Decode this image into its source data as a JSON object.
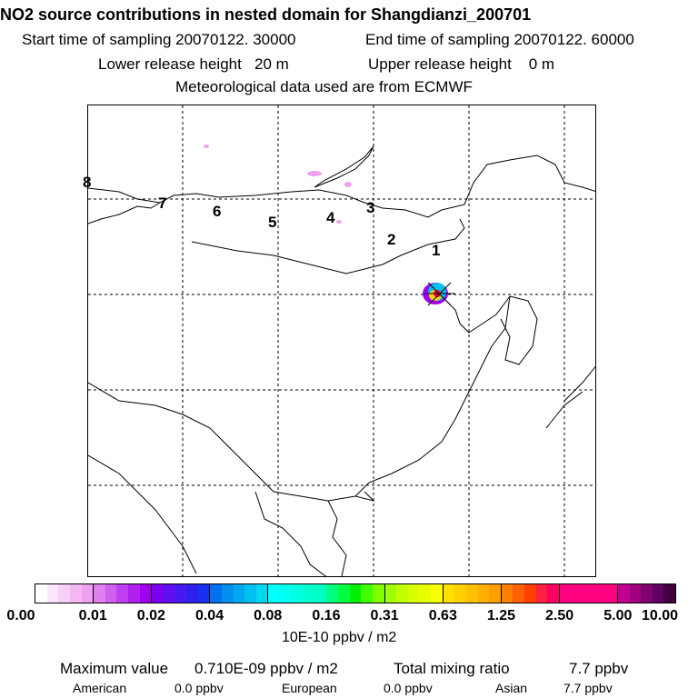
{
  "chart_data": {
    "type": "heatmap",
    "title": "NO2 source contributions in nested domain for Shangdianzi_200701",
    "subtitle_lines": {
      "start": "Start time of sampling 20070122. 30000",
      "end": "End time of sampling 20070122. 60000",
      "lower": "Lower release height   20 m",
      "upper": "Upper release height    0 m",
      "met": "Meteorological data used are from ECMWF"
    },
    "colorbar": {
      "ticks": [
        "0.00",
        "0.01",
        "0.02",
        "0.04",
        "0.08",
        "0.16",
        "0.31",
        "0.63",
        "1.25",
        "2.50",
        "5.00",
        "10.00"
      ],
      "unit": "10E-10 ppbv / m2",
      "colors": [
        [
          "#ffffff",
          "#fbe6fb",
          "#f7d0f7",
          "#f3b8f3",
          "#efa0ef"
        ],
        [
          "#e080f0",
          "#d060f0",
          "#c040f0",
          "#b020f0",
          "#a000f0"
        ],
        [
          "#7a00f0",
          "#6010f0",
          "#4818f0",
          "#3020f0",
          "#1830f0"
        ],
        [
          "#0070f0",
          "#0090f0",
          "#00a8f0",
          "#00c0f0",
          "#00d8f0"
        ],
        [
          "#00ffff",
          "#00fff0",
          "#00ffe0",
          "#00ffd0",
          "#00ffc0"
        ],
        [
          "#00ff80",
          "#00ff40",
          "#00f000",
          "#40ff00",
          "#80ff00"
        ],
        [
          "#a0ff00",
          "#c0ff00",
          "#d8ff00",
          "#e8ff00",
          "#f8ff00"
        ],
        [
          "#ffe000",
          "#ffd000",
          "#ffc000",
          "#ffb000",
          "#ffa000"
        ],
        [
          "#ff8000",
          "#ff6000",
          "#ff4000",
          "#ff2040",
          "#ff0060"
        ],
        [
          "#ff0080",
          "#ff0080",
          "#ff0080",
          "#ff0080",
          "#ff0080"
        ],
        [
          "#c00090",
          "#a00080",
          "#800070",
          "#600060",
          "#400040"
        ]
      ]
    },
    "trajectory_labels": [
      "1",
      "2",
      "3",
      "4",
      "5",
      "6",
      "7",
      "8"
    ],
    "lat_lines": 4,
    "lon_lines": 5
  },
  "footer": {
    "max_label": "Maximum value",
    "max_value": "0.710E-09 ppbv / m2",
    "total_label": "Total mixing ratio",
    "total_value": "7.7 ppbv",
    "american_label": "American",
    "american_value": "0.0 ppbv",
    "european_label": "European",
    "european_value": "0.0 ppbv",
    "asian_label": "Asian",
    "asian_value": "7.7 ppbv"
  }
}
